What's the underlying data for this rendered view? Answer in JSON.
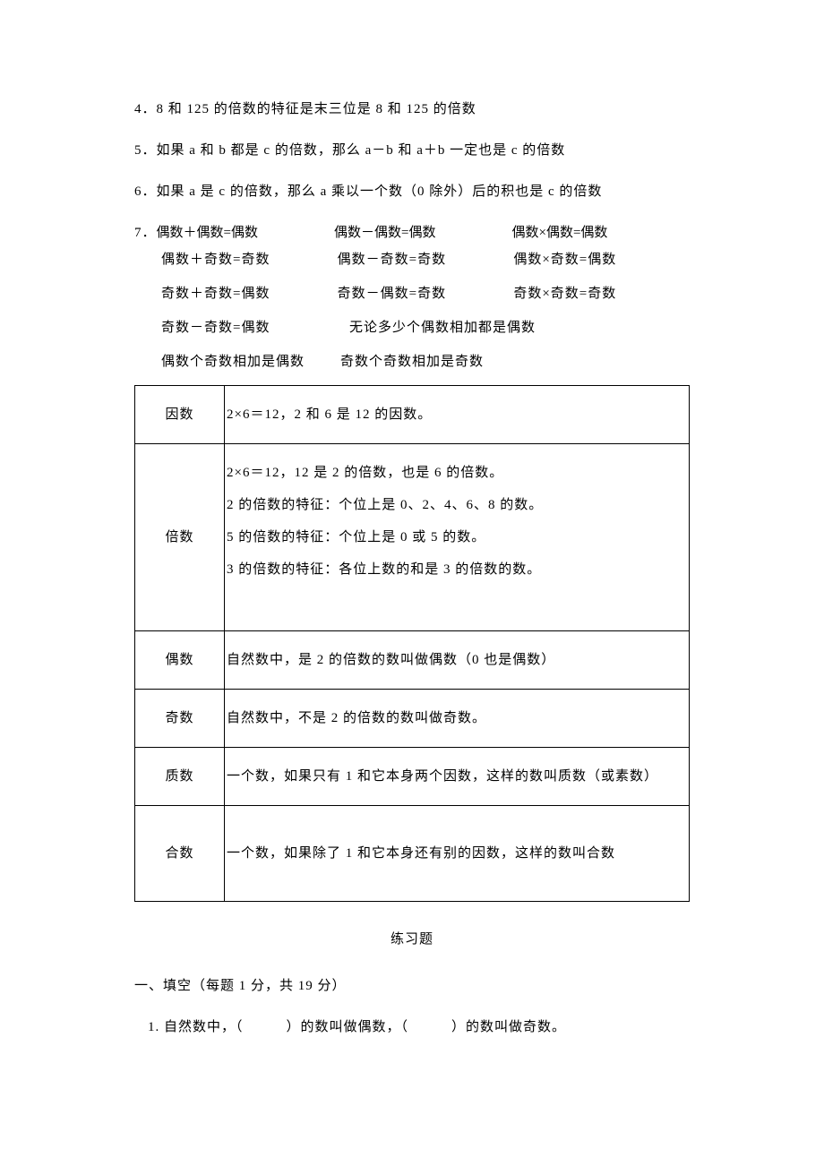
{
  "points": {
    "p4": "4．8 和 125 的倍数的特征是末三位是 8 和 125 的倍数",
    "p5": "5．如果 a 和 b 都是 c 的倍数，那么 a－b 和 a＋b 一定也是 c 的倍数",
    "p6": "6．如果 a 是 c 的倍数，那么 a 乘以一个数（0 除外）后的积也是 c 的倍数",
    "p7label": "7．"
  },
  "rules7": {
    "r1c1": "偶数＋偶数=偶数",
    "r1c2": "偶数－偶数=偶数",
    "r1c3": "偶数×偶数=偶数",
    "r2c1": "偶数＋奇数=奇数",
    "r2c2": "偶数－奇数=奇数",
    "r2c3": "偶数×奇数=偶数",
    "r3c1": "奇数＋奇数=偶数",
    "r3c2": "奇数－偶数=奇数",
    "r3c3": "奇数×奇数=奇数",
    "r4c1": "奇数－奇数=偶数",
    "r4c2": "无论多少个偶数相加都是偶数",
    "r5c1": "偶数个奇数相加是偶数",
    "r5c2": "奇数个奇数相加是奇数"
  },
  "table": {
    "row1": {
      "term": "因数",
      "def": "2×6＝12，2 和 6 是 12 的因数。"
    },
    "row2": {
      "term": "倍数",
      "def": "2×6＝12，12 是 2 的倍数，也是 6 的倍数。\n2 的倍数的特征：个位上是 0、2、4、6、8 的数。\n5 的倍数的特征：个位上是 0 或 5 的数。\n 3 的倍数的特征：各位上数的和是 3 的倍数的数。\n "
    },
    "row3": {
      "term": "偶数",
      "def": "自然数中，是 2 的倍数的数叫做偶数（0 也是偶数）"
    },
    "row4": {
      "term": "奇数",
      "def": "自然数中，不是 2 的倍数的数叫做奇数。"
    },
    "row5": {
      "term": "质数",
      "def": "一个数，如果只有 1 和它本身两个因数，这样的数叫质数（或素数）"
    },
    "row6": {
      "term": "合数",
      "def": "一个数，如果除了 1 和它本身还有别的因数，这样的数叫合数"
    }
  },
  "exercise": {
    "title": "练习题",
    "section1": "一、填空（每题 1 分，共 19 分）",
    "q1": "1. 自然数中，（　　　）的数叫做偶数，（　　　）的数叫做奇数。"
  }
}
